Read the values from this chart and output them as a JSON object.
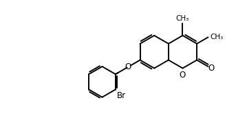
{
  "bg": "#ffffff",
  "lc": "#000000",
  "lw": 1.4,
  "dbo": 0.055,
  "fs": 8.5,
  "figsize": [
    3.59,
    1.91
  ],
  "dpi": 100,
  "xlim": [
    0.0,
    7.2
  ],
  "ylim": [
    0.3,
    4.0
  ]
}
